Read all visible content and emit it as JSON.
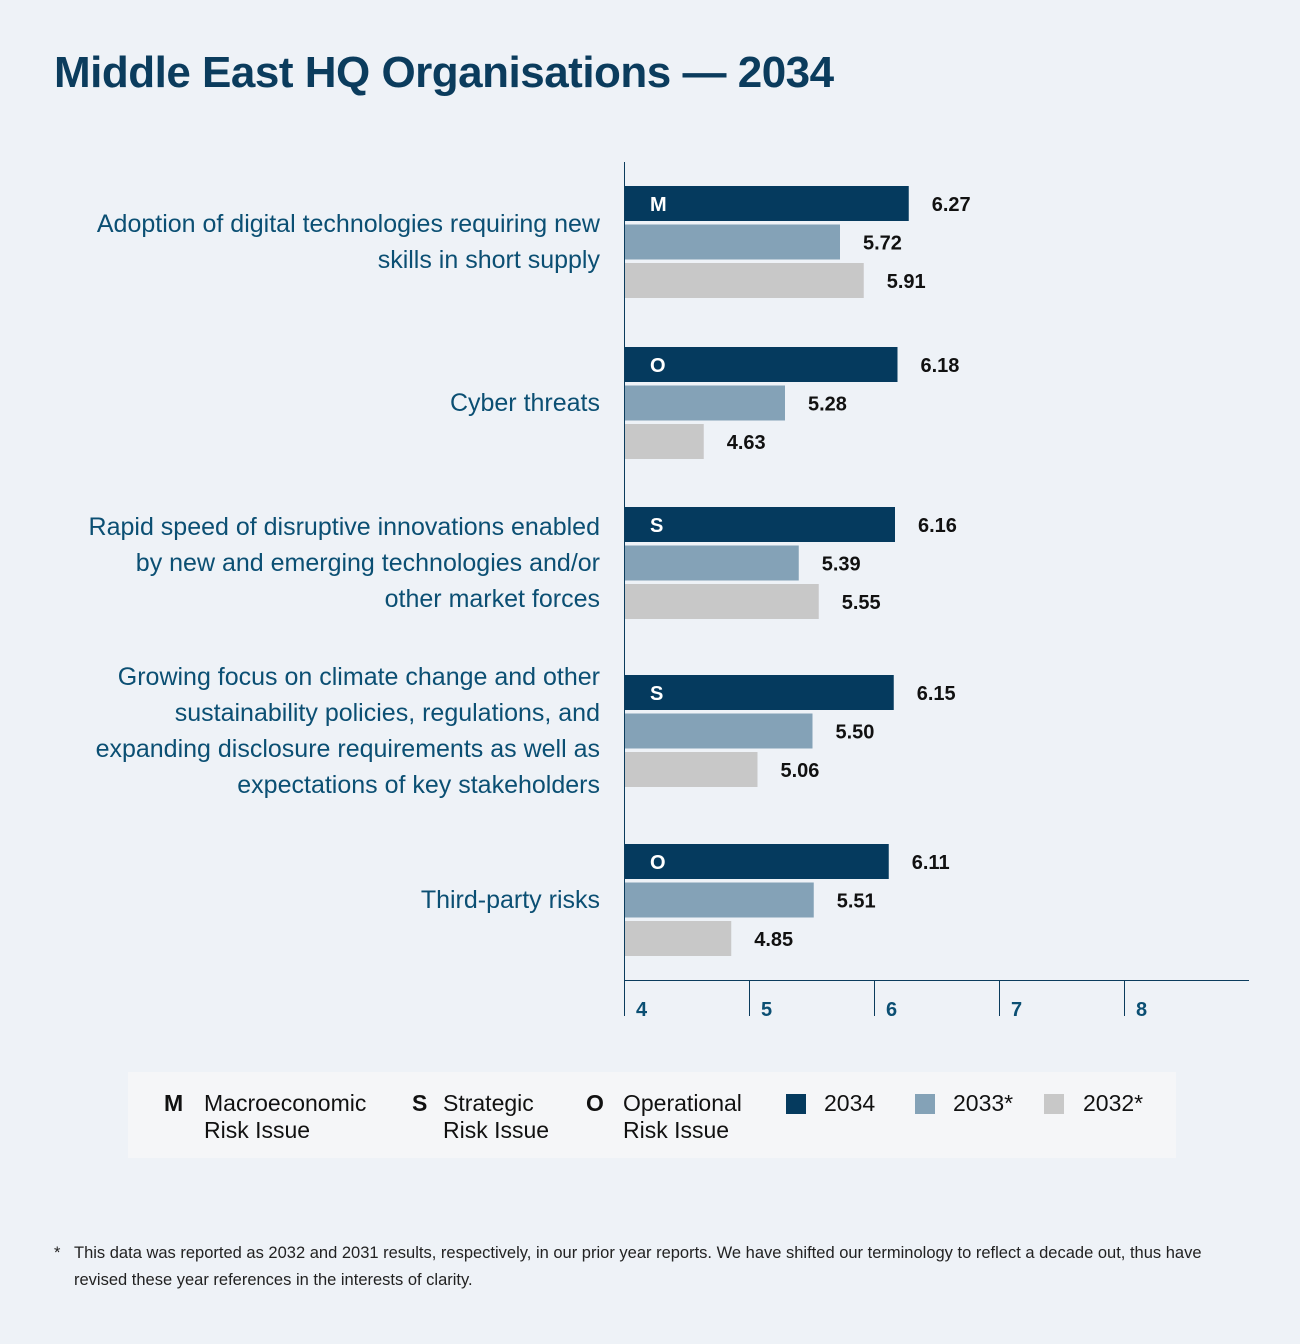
{
  "title": "Middle East HQ Organisations — 2034",
  "chart_data": {
    "type": "bar",
    "orientation": "horizontal",
    "categories": [
      "Adoption of digital technologies requiring new skills in short supply",
      "Cyber threats",
      "Rapid speed of disruptive innovations enabled by new and emerging technologies and/or other market forces",
      "Growing focus on climate change and other sustainability policies, regulations, and expanding disclosure requirements as well as expectations of key stakeholders",
      "Third-party risks"
    ],
    "category_lines": [
      [
        "Adoption of digital technologies requiring new",
        "skills in short supply"
      ],
      [
        "Cyber threats"
      ],
      [
        "Rapid speed of disruptive innovations enabled",
        "by new and emerging technologies and/or",
        "other market forces"
      ],
      [
        "Growing focus on climate change and other",
        "sustainability policies, regulations, and",
        "expanding disclosure requirements as well as",
        "expectations of key stakeholders"
      ],
      [
        "Third-party risks"
      ]
    ],
    "risk_type": [
      "M",
      "O",
      "S",
      "S",
      "O"
    ],
    "series": [
      {
        "name": "2034",
        "color": "#053a5e",
        "values": [
          6.27,
          6.18,
          6.16,
          6.15,
          6.11
        ]
      },
      {
        "name": "2033*",
        "color": "#84a2b7",
        "values": [
          5.72,
          5.28,
          5.39,
          5.5,
          5.51
        ]
      },
      {
        "name": "2032*",
        "color": "#c8c8c8",
        "values": [
          5.91,
          4.63,
          5.55,
          5.06,
          4.85
        ]
      }
    ],
    "value_labels": [
      [
        "6.27",
        "5.72",
        "5.91"
      ],
      [
        "6.18",
        "5.28",
        "4.63"
      ],
      [
        "6.16",
        "5.39",
        "5.55"
      ],
      [
        "6.15",
        "5.50",
        "5.06"
      ],
      [
        "6.11",
        "5.51",
        "4.85"
      ]
    ],
    "x_ticks": [
      "4",
      "5",
      "6",
      "7",
      "8"
    ],
    "xlim": [
      4,
      9
    ],
    "grid": false
  },
  "legend": {
    "m_letter": "M",
    "m_text": "Macroeconomic\nRisk Issue",
    "s_letter": "S",
    "s_text": "Strategic\nRisk Issue",
    "o_letter": "O",
    "o_text": "Operational\nRisk Issue",
    "y2034": "2034",
    "y2033": "2033*",
    "y2032": "2032*"
  },
  "footnote": {
    "marker": "*",
    "text": "This data was reported as 2032 and 2031 results, respectively, in our prior year reports. We have shifted our terminology to reflect a decade out, thus have revised these year references in the interests of clarity."
  }
}
